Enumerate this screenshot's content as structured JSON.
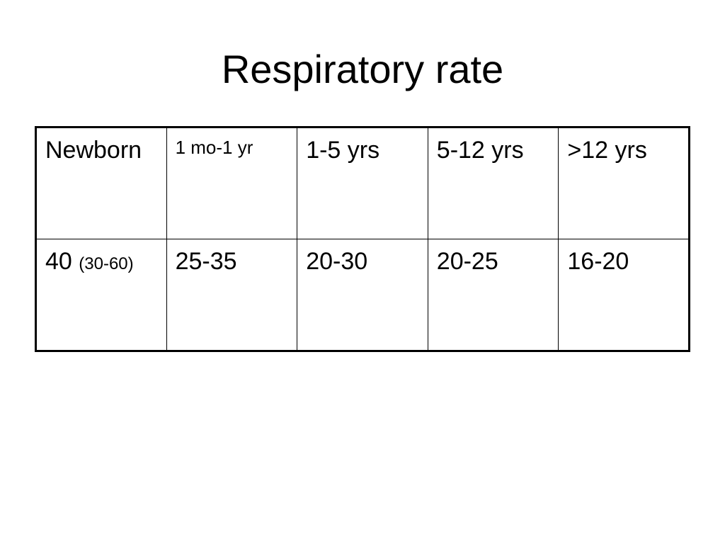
{
  "slide": {
    "title": "Respiratory rate"
  },
  "table": {
    "headers": [
      "Newborn",
      "1 mo-1 yr",
      "1-5 yrs",
      "5-12 yrs",
      ">12 yrs"
    ],
    "values": {
      "newborn_main": "40",
      "newborn_range": "(30-60)",
      "infant": "25-35",
      "toddler": "20-30",
      "child": "20-25",
      "adolescent": "16-20"
    }
  }
}
